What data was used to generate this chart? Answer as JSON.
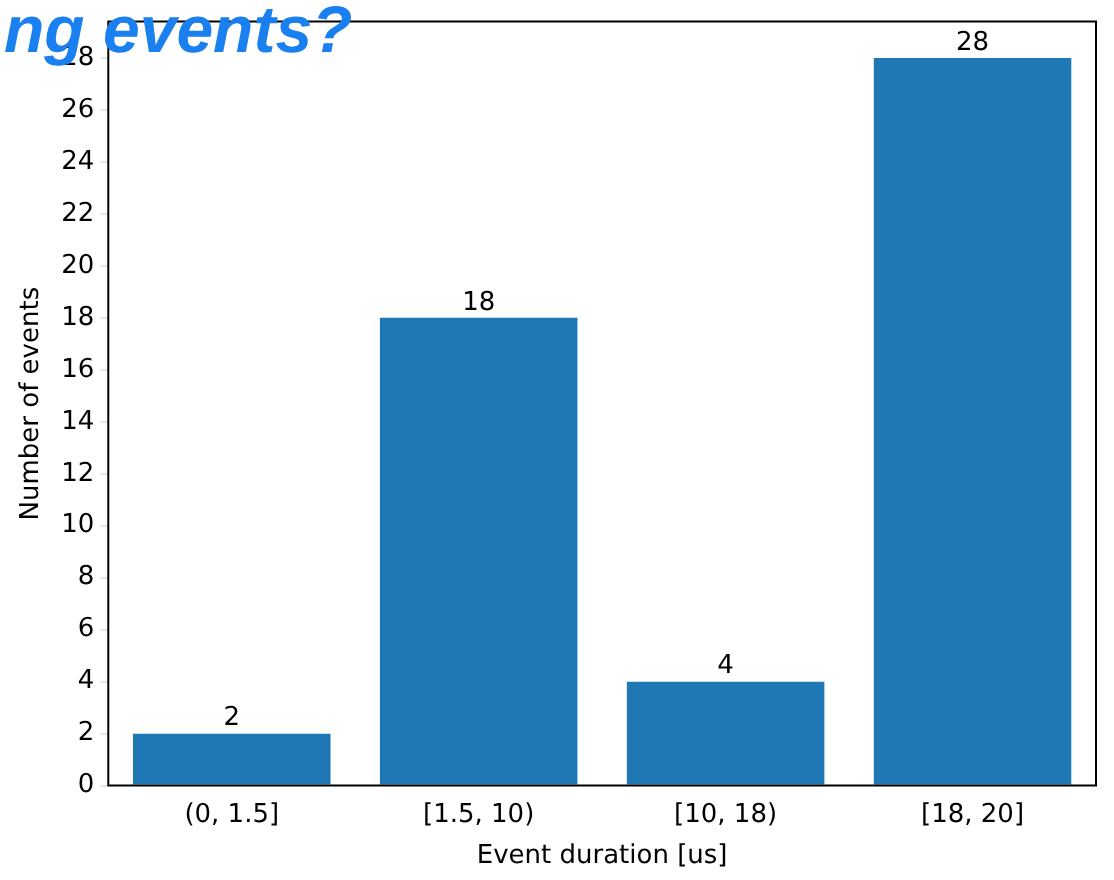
{
  "chart_data": {
    "type": "bar",
    "title": "ng events?",
    "xlabel": "Event duration [us]",
    "ylabel": "Number of events",
    "categories": [
      "(0, 1.5]",
      "[1.5, 10)",
      "[10, 18)",
      "[18, 20]"
    ],
    "values": [
      2,
      18,
      4,
      28
    ],
    "color": "#1f77b4",
    "ylim": [
      0,
      29.4
    ],
    "yticks": [
      0,
      2,
      4,
      6,
      8,
      10,
      12,
      14,
      16,
      18,
      20,
      22,
      24,
      26,
      28
    ],
    "grid": false,
    "legend": false,
    "data_labels": true
  }
}
